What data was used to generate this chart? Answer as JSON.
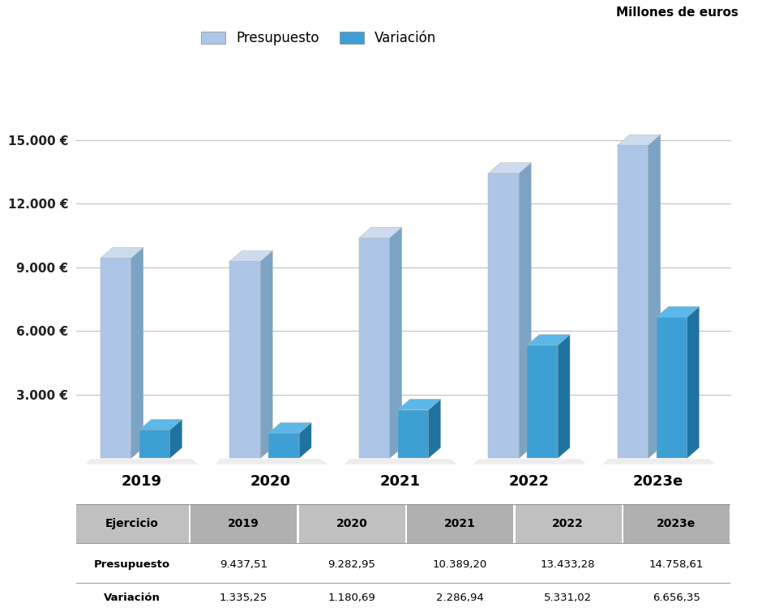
{
  "years": [
    "2019",
    "2020",
    "2021",
    "2022",
    "2023e"
  ],
  "presupuesto": [
    9437.51,
    9282.95,
    10389.2,
    13433.28,
    14758.61
  ],
  "variacion": [
    1335.25,
    1180.69,
    2286.94,
    5331.02,
    6656.35
  ],
  "bar_color_front": "#adc6e8",
  "bar_color_side": "#7ba3c4",
  "bar_color_top": "#ccdcee",
  "var_color_front": "#3d9fd4",
  "var_color_side": "#1e73a0",
  "var_color_top": "#5bb8e8",
  "ylim_max": 18000,
  "yticks": [
    0,
    3000,
    6000,
    9000,
    12000,
    15000
  ],
  "ytick_labels": [
    "",
    "3.000 €",
    "6.000 €",
    "9.000 €",
    "12.000 €",
    "15.000 €"
  ],
  "legend_presupuesto": "Presupuesto",
  "legend_variacion": "Variación",
  "units_label": "Millones de euros",
  "background_color": "#ffffff",
  "table_row1_label": "Presupuesto",
  "table_row2_label": "Variación",
  "grid_color": "#bbbbbb",
  "shadow_color": "#cccccc",
  "table_header_color1": "#c0c0c0",
  "table_header_color2": "#b0b0b0"
}
